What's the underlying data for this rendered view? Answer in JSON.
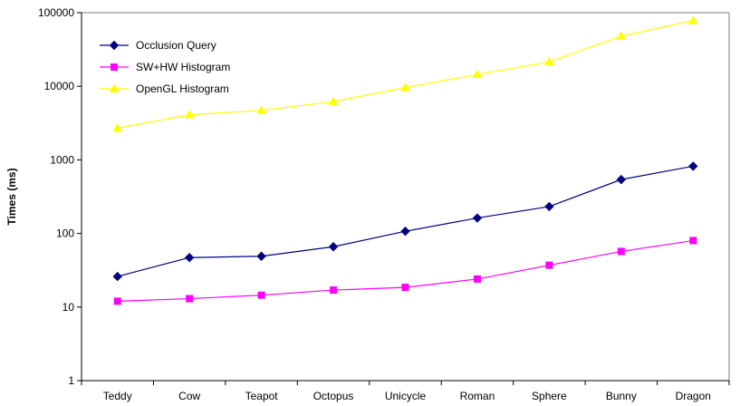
{
  "chart_data": {
    "type": "line",
    "categories": [
      "Teddy",
      "Cow",
      "Teapot",
      "Octopus",
      "Unicycle",
      "Roman",
      "Sphere",
      "Bunny",
      "Dragon"
    ],
    "ylabel": "Times (ms)",
    "yscale": "log",
    "ylim": [
      1,
      100000
    ],
    "yticks": [
      "1",
      "10",
      "100",
      "1000",
      "10000",
      "100000"
    ],
    "grid": false,
    "legend_position": "top-left",
    "series": [
      {
        "name": "Occlusion Query",
        "values": [
          26,
          47,
          49,
          66,
          107,
          162,
          232,
          540,
          820
        ],
        "color": "#000080",
        "marker": "diamond"
      },
      {
        "name": "SW+HW Histogram",
        "values": [
          12,
          13,
          14.5,
          17,
          18.5,
          24,
          37,
          57,
          80
        ],
        "color": "#ff00ff",
        "marker": "square"
      },
      {
        "name": "OpenGL Histogram",
        "values": [
          2700,
          4100,
          4700,
          6200,
          9600,
          14500,
          21500,
          48000,
          78000
        ],
        "color": "#ffff00",
        "marker": "triangle"
      }
    ]
  }
}
